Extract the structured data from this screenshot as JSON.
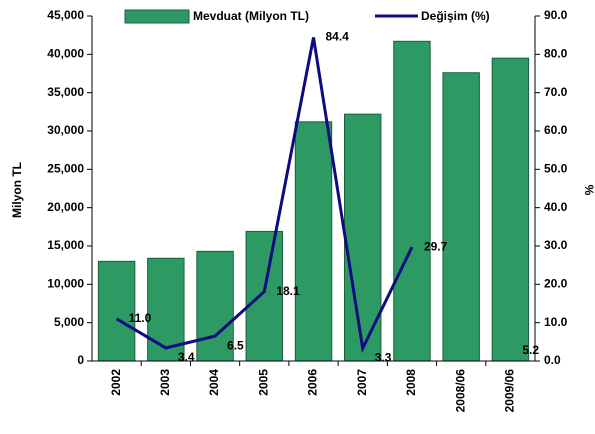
{
  "chart_data": {
    "type": "bar+line",
    "categories": [
      "2002",
      "2003",
      "2004",
      "2005",
      "2006",
      "2007",
      "2008",
      "2008/06",
      "2009/06"
    ],
    "series": [
      {
        "name": "Mevduat (Milyon TL)",
        "type": "bar",
        "color": "#2e9a63",
        "values": [
          13000,
          13400,
          14300,
          16900,
          31200,
          32200,
          41700,
          37600,
          39500
        ]
      },
      {
        "name": "Değişim (%)",
        "type": "line",
        "axis": "y2",
        "color": "#0c0c80",
        "values": [
          11.0,
          3.4,
          6.5,
          18.1,
          84.4,
          3.3,
          29.7,
          null,
          5.2
        ],
        "value_labels": [
          "11.0",
          "3.4",
          "6.5",
          "18.1",
          "84.4",
          "3.3",
          "29.7",
          null,
          "5.2"
        ]
      }
    ],
    "ylabel": "Milyon TL",
    "y2label": "%",
    "ylim": [
      0,
      45000
    ],
    "yticks": [
      0,
      {
        "value": 5000,
        "label": "5,000"
      },
      {
        "value": 10000,
        "label": "10,000"
      },
      {
        "value": 15000,
        "label": "15,000"
      },
      {
        "value": 20000,
        "label": "20,000"
      },
      {
        "value": 25000,
        "label": "25,000"
      },
      {
        "value": 30000,
        "label": "30,000"
      },
      {
        "value": 35000,
        "label": "35,000"
      },
      {
        "value": 40000,
        "label": "40,000"
      },
      {
        "value": 45000,
        "label": "45,000"
      }
    ],
    "y2lim": [
      0,
      90
    ],
    "y2ticks": [
      {
        "value": 0,
        "label": "0.0"
      },
      {
        "value": 10,
        "label": "10.0"
      },
      {
        "value": 20,
        "label": "20.0"
      },
      {
        "value": 30,
        "label": "30.0"
      },
      {
        "value": 40,
        "label": "40.0"
      },
      {
        "value": 50,
        "label": "50.0"
      },
      {
        "value": 60,
        "label": "60.0"
      },
      {
        "value": 70,
        "label": "70.0"
      },
      {
        "value": 80,
        "label": "80.0"
      },
      {
        "value": 90,
        "label": "90.0"
      }
    ],
    "grid": false
  }
}
